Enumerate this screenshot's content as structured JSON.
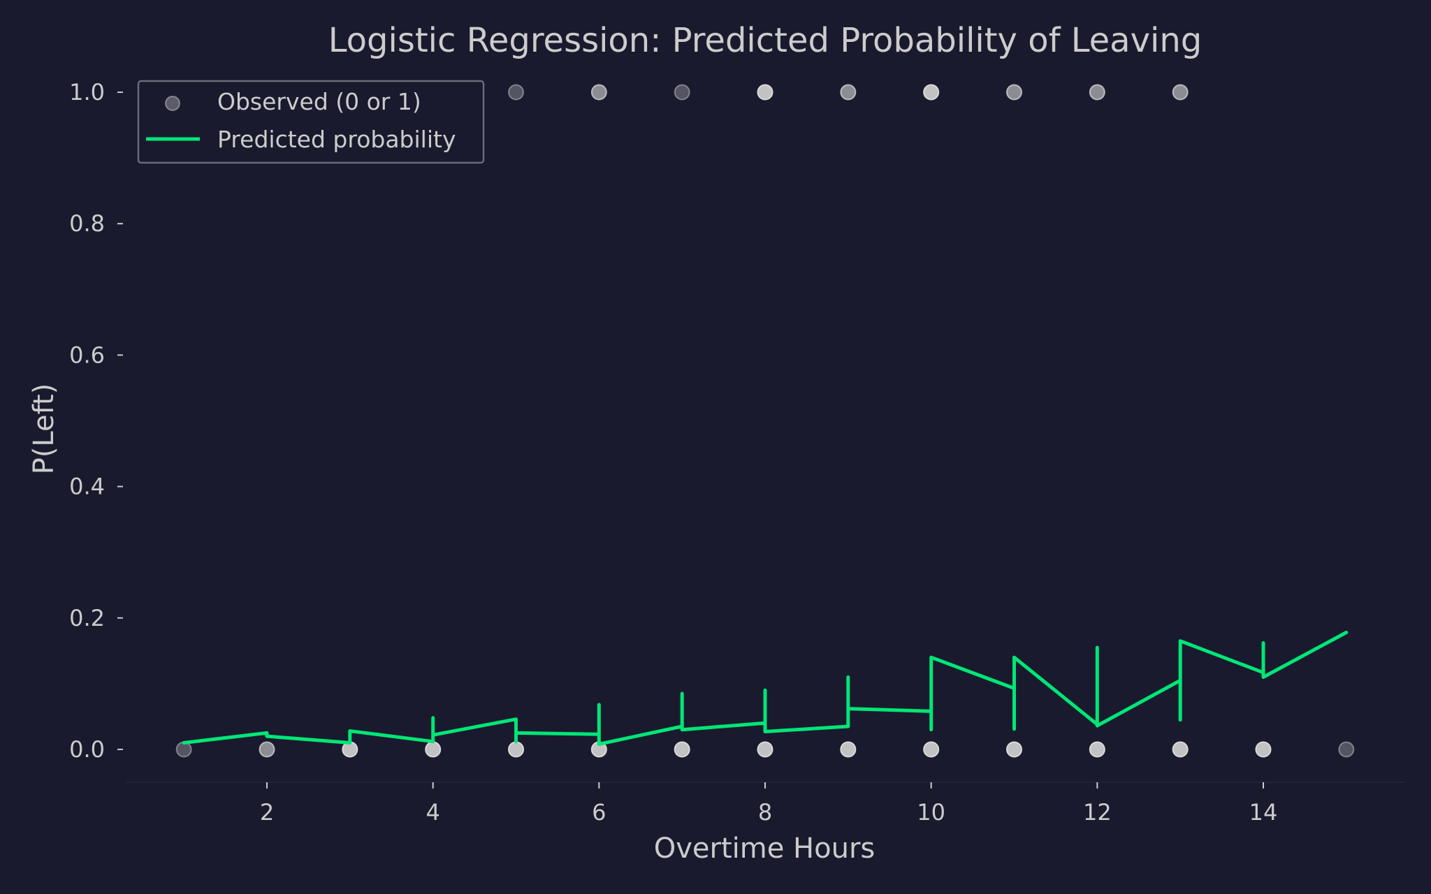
{
  "chart_data": {
    "type": "scatter",
    "title": "Logistic Regression: Predicted Probability of Leaving",
    "xlabel": "Overtime Hours",
    "ylabel": "P(Left)",
    "xlim": [
      0.3,
      15.7
    ],
    "ylim": [
      -0.05,
      1.05
    ],
    "xticks": [
      2,
      4,
      6,
      8,
      10,
      12,
      14
    ],
    "xtick_labels": [
      "2",
      "4",
      "6",
      "8",
      "10",
      "12",
      "14"
    ],
    "yticks": [
      0.0,
      0.2,
      0.4,
      0.6,
      0.8,
      1.0
    ],
    "ytick_labels": [
      "0.0",
      "0.2",
      "0.4",
      "0.6",
      "0.8",
      "1.0"
    ],
    "grid": false,
    "legend": {
      "placement": "top-left",
      "entries": [
        "Observed (0 or 1)",
        "Predicted probability"
      ]
    },
    "colors": {
      "background": "#1a1a2e",
      "line": "#00e676",
      "point": "#d9d9d9",
      "text": "#cccccc",
      "legend_border": "#6a6a78"
    },
    "series": [
      {
        "name": "Observed (0 or 1)",
        "type": "scatter",
        "points": [
          {
            "x": 1,
            "y": 0,
            "density": "low"
          },
          {
            "x": 2,
            "y": 0,
            "density": "medium"
          },
          {
            "x": 3,
            "y": 0,
            "density": "high"
          },
          {
            "x": 4,
            "y": 0,
            "density": "high"
          },
          {
            "x": 5,
            "y": 0,
            "density": "high"
          },
          {
            "x": 6,
            "y": 0,
            "density": "high"
          },
          {
            "x": 7,
            "y": 0,
            "density": "high"
          },
          {
            "x": 8,
            "y": 0,
            "density": "high"
          },
          {
            "x": 9,
            "y": 0,
            "density": "high"
          },
          {
            "x": 10,
            "y": 0,
            "density": "high"
          },
          {
            "x": 11,
            "y": 0,
            "density": "high"
          },
          {
            "x": 12,
            "y": 0,
            "density": "high"
          },
          {
            "x": 13,
            "y": 0,
            "density": "high"
          },
          {
            "x": 14,
            "y": 0,
            "density": "high"
          },
          {
            "x": 15,
            "y": 0,
            "density": "low"
          },
          {
            "x": 5,
            "y": 1,
            "density": "low"
          },
          {
            "x": 6,
            "y": 1,
            "density": "medium"
          },
          {
            "x": 7,
            "y": 1,
            "density": "low"
          },
          {
            "x": 8,
            "y": 1,
            "density": "high"
          },
          {
            "x": 9,
            "y": 1,
            "density": "medium"
          },
          {
            "x": 10,
            "y": 1,
            "density": "high"
          },
          {
            "x": 11,
            "y": 1,
            "density": "medium"
          },
          {
            "x": 12,
            "y": 1,
            "density": "medium"
          },
          {
            "x": 13,
            "y": 1,
            "density": "medium"
          }
        ]
      },
      {
        "name": "Predicted probability",
        "type": "line",
        "x": [
          1,
          2,
          2,
          3,
          3,
          4,
          4,
          4,
          5,
          5,
          5,
          6,
          6,
          6,
          7,
          7,
          7,
          8,
          8,
          8,
          9,
          9,
          9,
          10,
          10,
          10,
          11,
          11,
          11,
          12,
          12,
          12,
          13,
          13,
          13,
          14,
          14,
          14,
          15
        ],
        "y": [
          0.01,
          0.025,
          0.02,
          0.01,
          0.028,
          0.012,
          0.048,
          0.022,
          0.046,
          0.012,
          0.025,
          0.023,
          0.068,
          0.008,
          0.035,
          0.085,
          0.03,
          0.04,
          0.09,
          0.027,
          0.035,
          0.11,
          0.062,
          0.058,
          0.03,
          0.14,
          0.093,
          0.031,
          0.14,
          0.038,
          0.155,
          0.036,
          0.105,
          0.045,
          0.165,
          0.117,
          0.162,
          0.11,
          0.178
        ]
      }
    ]
  }
}
